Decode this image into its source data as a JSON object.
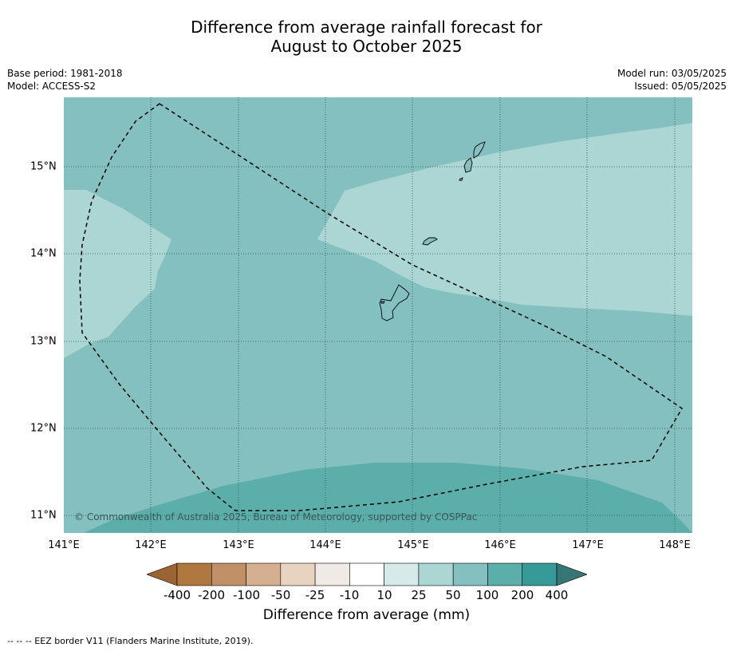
{
  "title_line1": "Difference from average rainfall forecast for",
  "title_line2": "August to October 2025",
  "meta_left": {
    "base_period": "Base period: 1981-2018",
    "model": "Model: ACCESS-S2"
  },
  "meta_right": {
    "model_run": "Model run: 03/05/2025",
    "issued": "Issued: 05/05/2025"
  },
  "x_ticks": [
    "141°E",
    "142°E",
    "143°E",
    "144°E",
    "145°E",
    "146°E",
    "147°E",
    "148°E"
  ],
  "y_ticks": [
    "15°N",
    "14°N",
    "13°N",
    "12°N",
    "11°N"
  ],
  "copyright": "© Commonwealth of Australia 2025, Bureau of Meteorology, supported by COSPPac",
  "colorbar": {
    "labels": [
      "-400",
      "-200",
      "-100",
      "-50",
      "-25",
      "-10",
      "10",
      "25",
      "50",
      "100",
      "200",
      "400"
    ],
    "colors": [
      "#9b6435",
      "#b0783f",
      "#c09068",
      "#d4b090",
      "#e8d2c0",
      "#efeae6",
      "#ffffff",
      "#d6ebe9",
      "#acd6d4",
      "#84c0bf",
      "#5caeab",
      "#369a98",
      "#367675"
    ],
    "title": "Difference from average (mm)"
  },
  "footer": "--  --  -- EEZ border V11 (Flanders Marine Institute, 2019)."
}
